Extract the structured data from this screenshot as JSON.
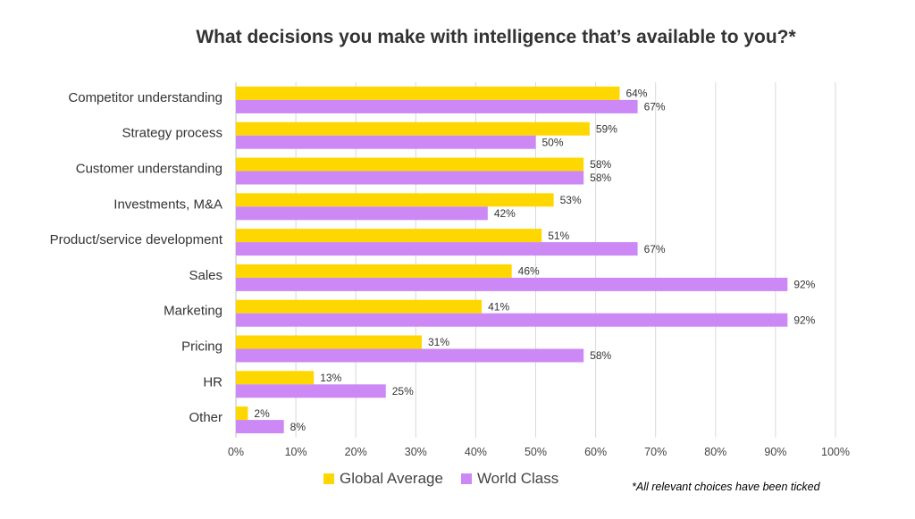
{
  "colors": {
    "global_average": "#FFD700",
    "world_class": "#CC88F5",
    "grid": "#D9D9D9",
    "axis": "#BFBFBF"
  },
  "legend": {
    "global_average": "Global Average",
    "world_class": "World Class"
  },
  "footnote": "*All relevant choices have been ticked",
  "chart_data": {
    "type": "bar",
    "orientation": "horizontal",
    "title": "What decisions you make with intelligence that’s available to you?*",
    "categories": [
      "Competitor understanding",
      "Strategy process",
      "Customer understanding",
      "Investments, M&A",
      "Product/service development",
      "Sales",
      "Marketing",
      "Pricing",
      "HR",
      "Other"
    ],
    "series": [
      {
        "name": "Global Average",
        "values": [
          64,
          59,
          58,
          53,
          51,
          46,
          41,
          31,
          13,
          2
        ]
      },
      {
        "name": "World Class",
        "values": [
          67,
          50,
          58,
          42,
          67,
          92,
          92,
          58,
          25,
          8
        ]
      }
    ],
    "value_suffix": "%",
    "xlim": [
      0,
      100
    ],
    "x_ticks": [
      "0%",
      "10%",
      "20%",
      "30%",
      "40%",
      "50%",
      "60%",
      "70%",
      "80%",
      "90%",
      "100%"
    ],
    "grid": true,
    "legend_position": "bottom"
  }
}
